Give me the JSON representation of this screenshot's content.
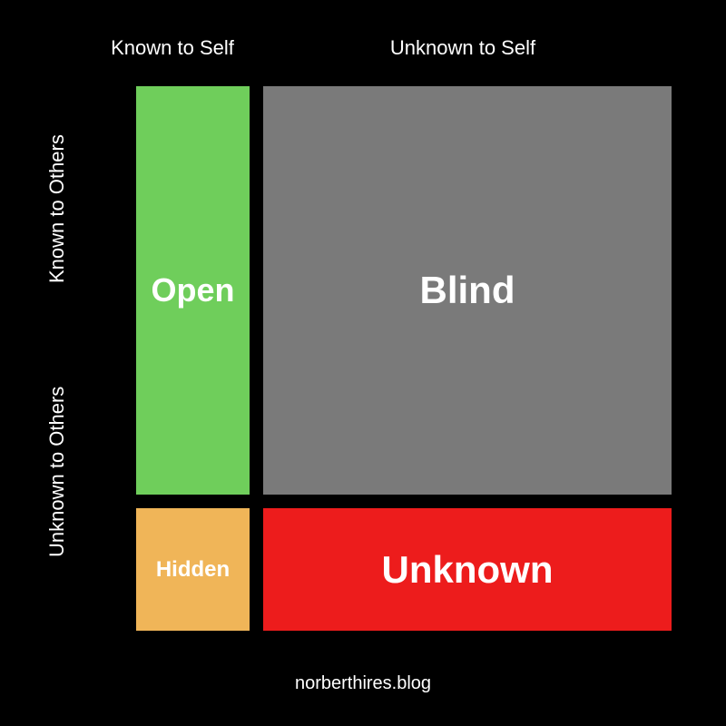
{
  "diagram": {
    "type": "johari-window",
    "background_color": "#000000",
    "text_color": "#ffffff",
    "col_headers": {
      "left": "Known to Self",
      "right": "Unknown to Self",
      "fontsize": 22
    },
    "row_headers": {
      "top": "Known to Others",
      "bottom": "Unknown to Others",
      "fontsize": 22
    },
    "cells": {
      "open": {
        "label": "Open",
        "color": "#6fce5b",
        "fontsize": 36
      },
      "blind": {
        "label": "Blind",
        "color": "#7a7a7a",
        "fontsize": 42
      },
      "hidden": {
        "label": "Hidden",
        "color": "#f0b558",
        "fontsize": 24
      },
      "unknown": {
        "label": "Unknown",
        "color": "#ed1c1c",
        "fontsize": 42
      }
    },
    "footer": "norberthires.blog"
  }
}
